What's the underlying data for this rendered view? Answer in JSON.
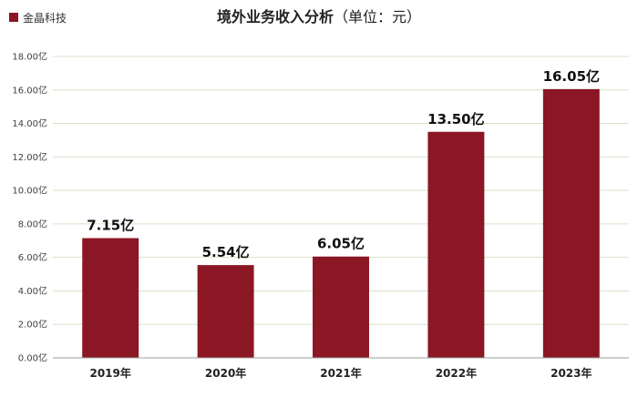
{
  "chart_data": {
    "type": "bar",
    "title": "境外业务收入分析",
    "title_unit": "（单位：元）",
    "legend": [
      "金晶科技"
    ],
    "categories": [
      "2019年",
      "2020年",
      "2021年",
      "2022年",
      "2023年"
    ],
    "series": [
      {
        "name": "金晶科技",
        "values": [
          7.15,
          5.54,
          6.05,
          13.5,
          16.05
        ],
        "labels": [
          "7.15亿",
          "5.54亿",
          "6.05亿",
          "13.50亿",
          "16.05亿"
        ]
      }
    ],
    "ylim": [
      0,
      18
    ],
    "ytick_step": 2,
    "ytick_labels": [
      "0.00亿",
      "2.00亿",
      "4.00亿",
      "6.00亿",
      "8.00亿",
      "10.00亿",
      "12.00亿",
      "14.00亿",
      "16.00亿",
      "18.00亿"
    ],
    "grid": true,
    "legend_position": "top-left",
    "colors": {
      "bar": "#8B1624",
      "grid": "#d6e3c8",
      "axis": "#9aa09a"
    }
  }
}
